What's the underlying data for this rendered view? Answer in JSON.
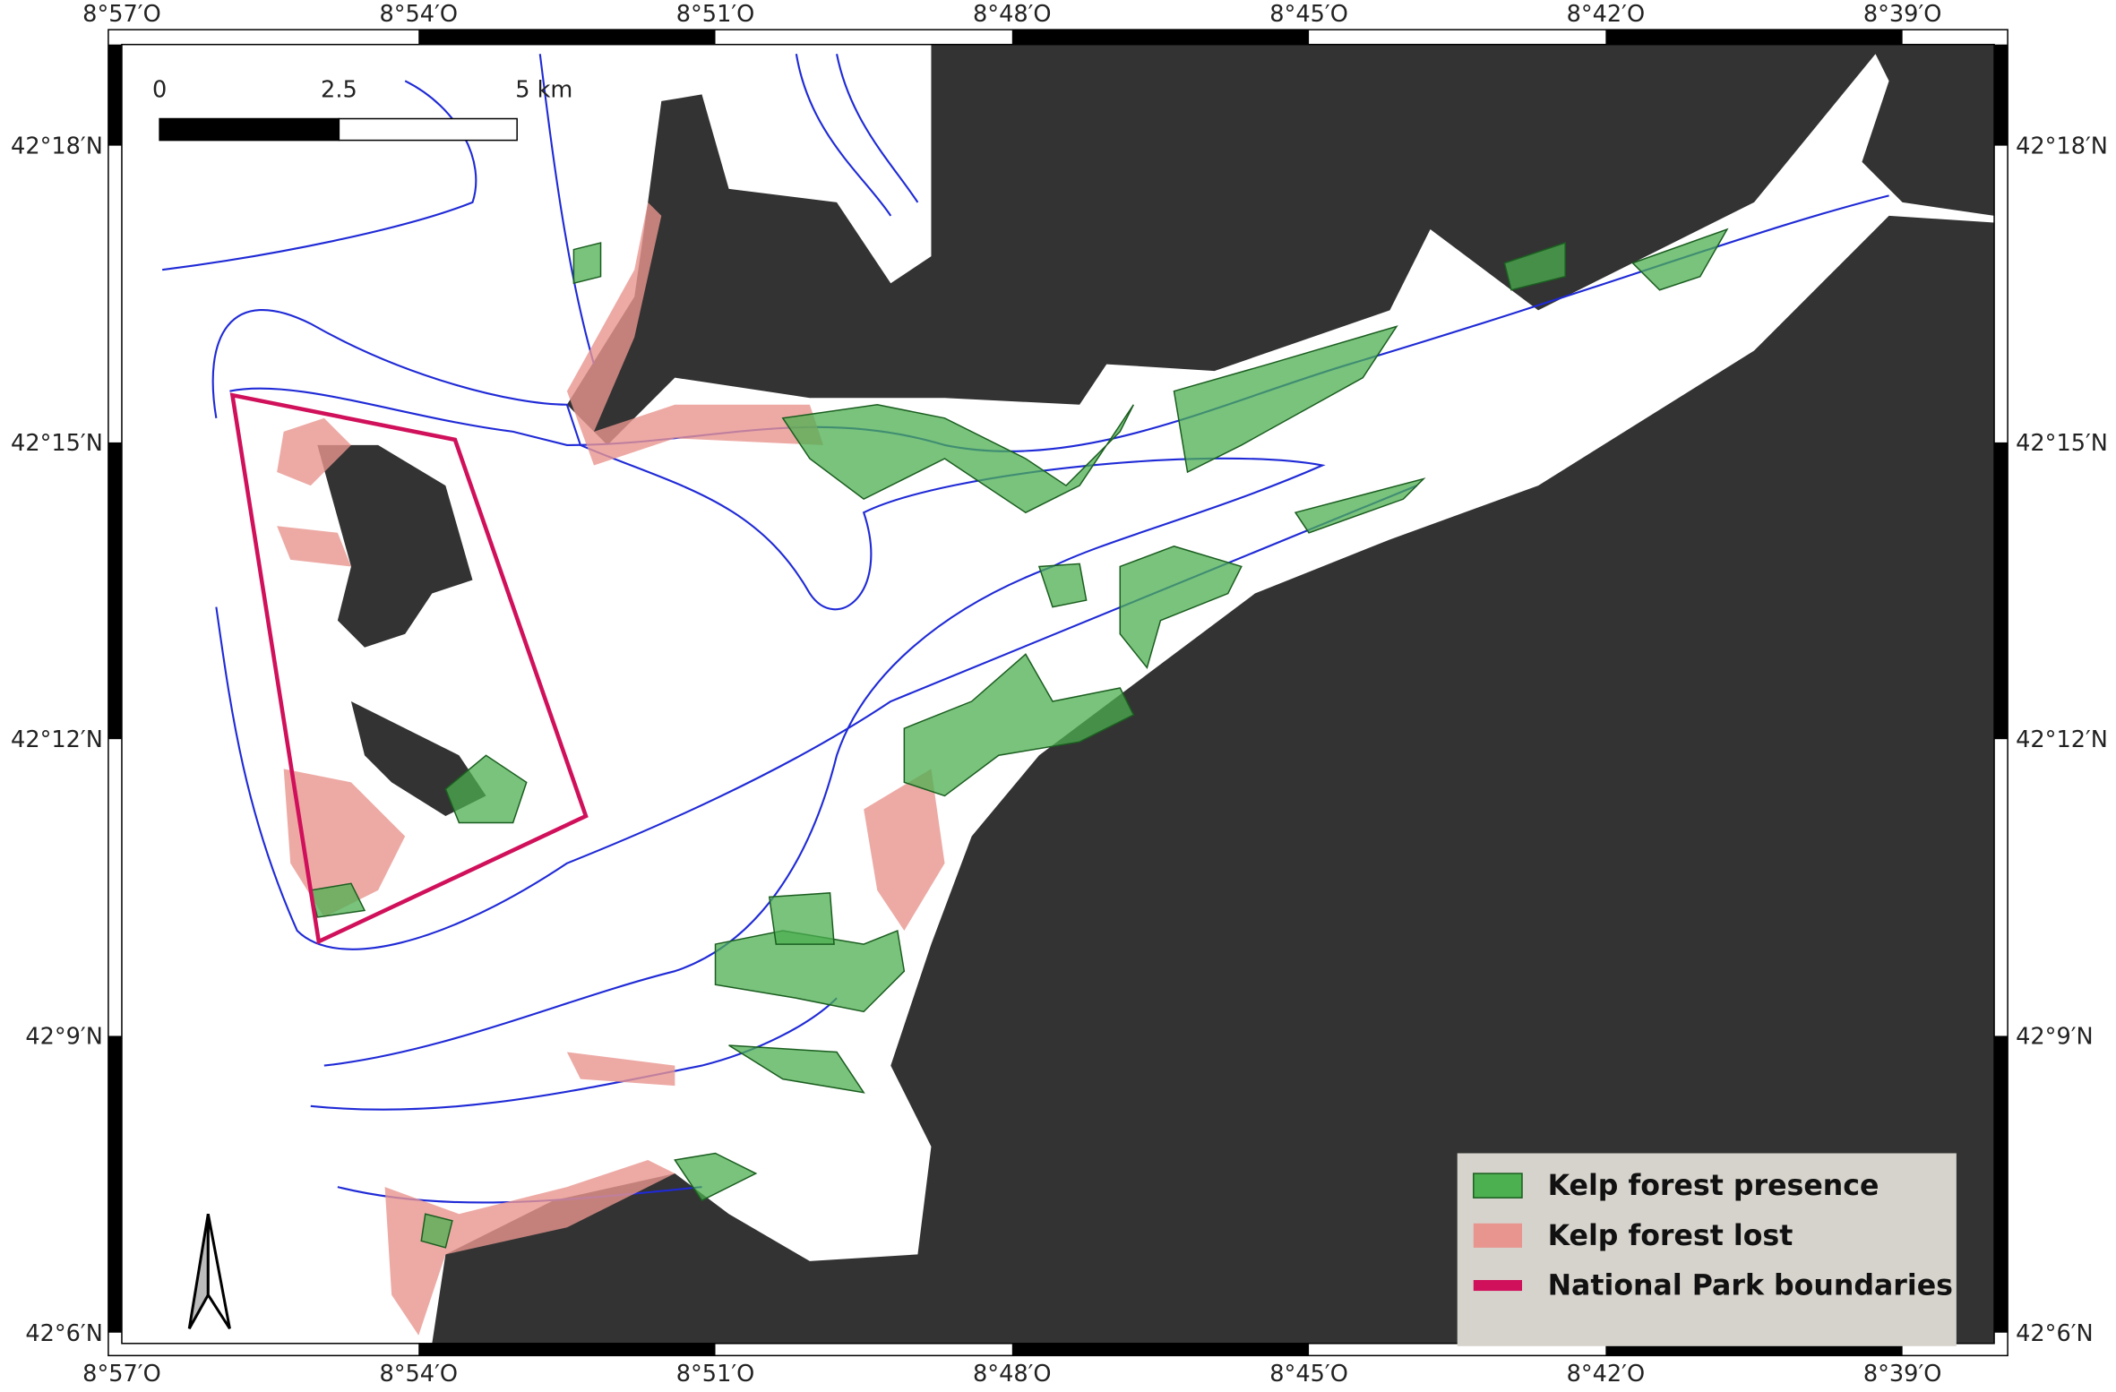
{
  "map": {
    "longitude_labels": [
      "8°57′O",
      "8°54′O",
      "8°51′O",
      "8°48′O",
      "8°45′O",
      "8°42′O",
      "8°39′O"
    ],
    "latitude_labels": [
      "42°18′N",
      "42°15′N",
      "42°12′N",
      "42°9′N",
      "42°6′N"
    ],
    "scale_bar": {
      "labels": [
        "0",
        "2.5",
        "5 km"
      ]
    },
    "legend": [
      {
        "label": "Kelp forest presence",
        "color": "#4caf50"
      },
      {
        "label": "Kelp forest lost",
        "color": "#e8958f"
      },
      {
        "label": "National Park boundaries",
        "color": "#d0105a"
      }
    ]
  }
}
